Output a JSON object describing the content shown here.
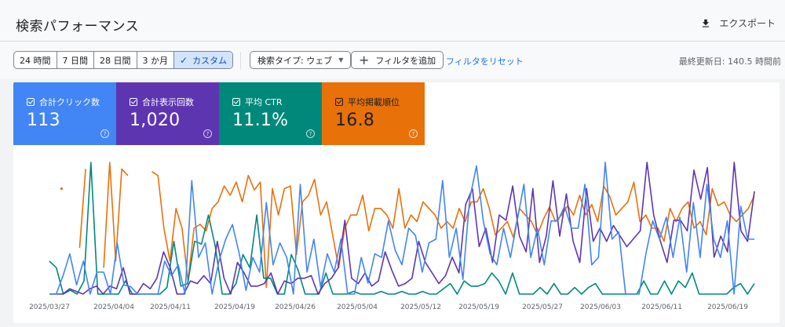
{
  "header": {
    "title": "検索パフォーマンス",
    "export_label": "エクスポート"
  },
  "toolbar": {
    "date_options": [
      "24 時間",
      "7 日間",
      "28 日間",
      "3 か月",
      "カスタム"
    ],
    "selected_date": "カスタム",
    "search_type": "検索タイプ: ウェブ",
    "add_filter": "フィルタを追加",
    "reset_filters": "フィルタをリセット",
    "last_updated": "最終更新日: 140.5 時間前"
  },
  "metrics": {
    "clicks": {
      "label": "合計クリック数",
      "value": "113",
      "color": "#4285f4"
    },
    "impressions": {
      "label": "合計表示回数",
      "value": "1,020",
      "color": "#5e35b1"
    },
    "ctr": {
      "label": "平均 CTR",
      "value": "11.1%",
      "color": "#00897b"
    },
    "position": {
      "label": "平均掲載順位",
      "value": "16.8",
      "color": "#e8710a"
    }
  },
  "chart_data": {
    "type": "line",
    "x_tick_labels": [
      "2025/03/27",
      "2025/04/04",
      "2025/04/11",
      "2025/04/19",
      "2025/04/26",
      "2025/05/04",
      "2025/05/12",
      "2025/05/19",
      "2025/05/27",
      "2025/06/03",
      "2025/06/11",
      "2025/06/19"
    ],
    "x_start": "2025/03/27",
    "x_end": "2025/06/22",
    "grid": false,
    "series": [
      {
        "metric": "impressions",
        "color": "#5e35b1",
        "values": [
          0,
          0,
          0,
          2,
          1,
          0,
          2,
          3,
          0,
          3,
          2,
          10,
          0,
          0,
          4,
          2,
          6,
          16,
          10,
          0,
          0,
          5,
          4,
          7,
          4,
          20,
          6,
          0,
          12,
          8,
          3,
          3,
          4,
          8,
          0,
          5,
          4,
          6,
          6,
          7,
          0,
          4,
          6,
          10,
          28,
          6,
          4,
          8,
          3,
          5,
          16,
          9,
          3,
          4,
          6,
          20,
          12,
          8,
          4,
          7,
          14,
          8,
          34,
          40,
          18,
          25,
          12,
          30,
          28,
          41,
          22,
          16,
          40,
          12,
          22,
          43,
          22,
          38,
          20,
          12,
          40,
          20,
          25,
          20,
          26,
          22,
          18,
          21,
          24,
          50,
          30,
          20,
          12,
          28,
          28,
          24,
          47,
          36,
          48,
          14,
          22,
          16,
          50,
          24,
          20,
          39
        ]
      },
      {
        "metric": "clicks",
        "color": "#4285f4",
        "values": [
          0,
          0,
          10,
          22,
          5,
          18,
          0,
          12,
          12,
          0,
          28,
          5,
          4,
          0,
          0,
          0,
          0,
          18,
          10,
          16,
          0,
          62,
          20,
          28,
          0,
          18,
          30,
          38,
          22,
          2,
          20,
          12,
          50,
          16,
          28,
          20,
          0,
          60,
          12,
          30,
          4,
          22,
          12,
          30,
          0,
          0,
          20,
          6,
          22,
          20,
          40,
          24,
          16,
          36,
          32,
          12,
          28,
          30,
          62,
          20,
          36,
          8,
          52,
          70,
          40,
          22,
          16,
          36,
          20,
          40,
          60,
          20,
          36,
          16,
          40,
          40,
          48,
          36,
          36,
          60,
          16,
          20,
          72,
          30,
          34,
          0,
          0,
          0,
          22,
          40,
          30,
          42,
          20,
          42,
          12,
          50,
          20,
          60,
          30,
          20,
          40,
          0,
          48,
          30,
          30
        ]
      },
      {
        "metric": "ctr",
        "color": "#00897b",
        "values": [
          25,
          20,
          0,
          3,
          0,
          10,
          100,
          0,
          0,
          0,
          0,
          10,
          0,
          0,
          0,
          0,
          0,
          5,
          40,
          6,
          8,
          40,
          38,
          60,
          36,
          0,
          0,
          8,
          30,
          20,
          60,
          12,
          12,
          0,
          0,
          30,
          18,
          0,
          0,
          0,
          16,
          0,
          0,
          0,
          2,
          0,
          0,
          0,
          2,
          0,
          0,
          2,
          0,
          0,
          2,
          0,
          0,
          4,
          8,
          0,
          10,
          6,
          6,
          8,
          16,
          10,
          0,
          16,
          0,
          0,
          0,
          5,
          0,
          8,
          0,
          0,
          5,
          0,
          5,
          8,
          0,
          0,
          0,
          0,
          0,
          0,
          10,
          0,
          0,
          10,
          0,
          10,
          5,
          16,
          0,
          0,
          0,
          0,
          0,
          5,
          8,
          0,
          8
        ]
      },
      {
        "metric": "position",
        "color": "#e8710a",
        "values": [
          null,
          null,
          80,
          null,
          null,
          35,
          95,
          null,
          null,
          20,
          100,
          25,
          95,
          90,
          null,
          null,
          null,
          93,
          90,
          50,
          25,
          65,
          50,
          10,
          50,
          53,
          48,
          65,
          70,
          82,
          75,
          85,
          70,
          90,
          79,
          85,
          5,
          80,
          60,
          80,
          82,
          30,
          70,
          75,
          87,
          60,
          70,
          45,
          20,
          50,
          60,
          60,
          75,
          48,
          65,
          65,
          60,
          50,
          80,
          50,
          60,
          55,
          70,
          65,
          60,
          50,
          55,
          50,
          65,
          55,
          70,
          70,
          80,
          65,
          45,
          50,
          55,
          43,
          65,
          60,
          55,
          45,
          57,
          66,
          55,
          60,
          67,
          60,
          75,
          60,
          68,
          55,
          82,
          74,
          60,
          65,
          70,
          85,
          55,
          60,
          50,
          50,
          40,
          65,
          55,
          65,
          70,
          50,
          55,
          45,
          80,
          67,
          70,
          60,
          55,
          60,
          65,
          75
        ]
      }
    ]
  }
}
